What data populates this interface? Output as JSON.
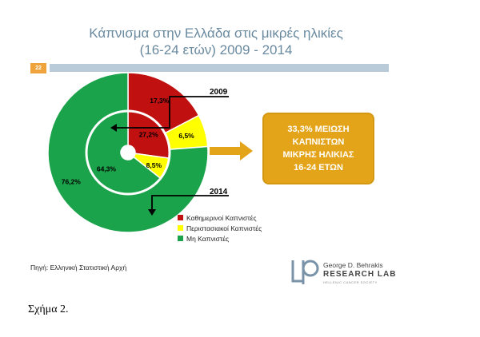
{
  "slide": {
    "title_line1": "Κάπνισμα στην Ελλάδα στις μικρές ηλικίες",
    "title_line2": "(16-24 ετών) 2009 - 2014",
    "slide_number": "22",
    "source": "Πηγή: Ελληνική Στατιστική Αρχή",
    "callout": [
      "33,3% ΜΕΙΩΣΗ",
      "ΚΑΠΝΙΣΤΩΝ",
      "ΜΙΚΡΗΣ ΗΛΙΚΙΑΣ",
      "16-24 ΕΤΩΝ"
    ],
    "logo": {
      "line1": "George D. Behrakis",
      "line2": "RESEARCH LAB",
      "line3": "HELLENIC CANCER SOCIETY"
    }
  },
  "caption": "Σχήμα 2.",
  "colors": {
    "daily": "#c01010",
    "occasional": "#ffff00",
    "non": "#1aa34a",
    "callout": "#e4a419",
    "arrow": "#e4a419"
  },
  "chart_data": {
    "type": "pie",
    "categories": [
      "Καθημερινοί Καπνιστές",
      "Περιστασιακοί Καπνιστές",
      "Μη Καπνιστές"
    ],
    "series": [
      {
        "name": "2014",
        "ring": "outer",
        "values": [
          17.3,
          6.5,
          76.2
        ],
        "labels": [
          "17,3%",
          "6,5%",
          "76,2%"
        ]
      },
      {
        "name": "2009",
        "ring": "inner",
        "values": [
          27.2,
          8.5,
          64.3
        ],
        "labels": [
          "27,2%",
          "8,5%",
          "64,3%"
        ]
      }
    ],
    "annotations": [
      "2009",
      "2014"
    ],
    "legend": "bottom-right"
  }
}
